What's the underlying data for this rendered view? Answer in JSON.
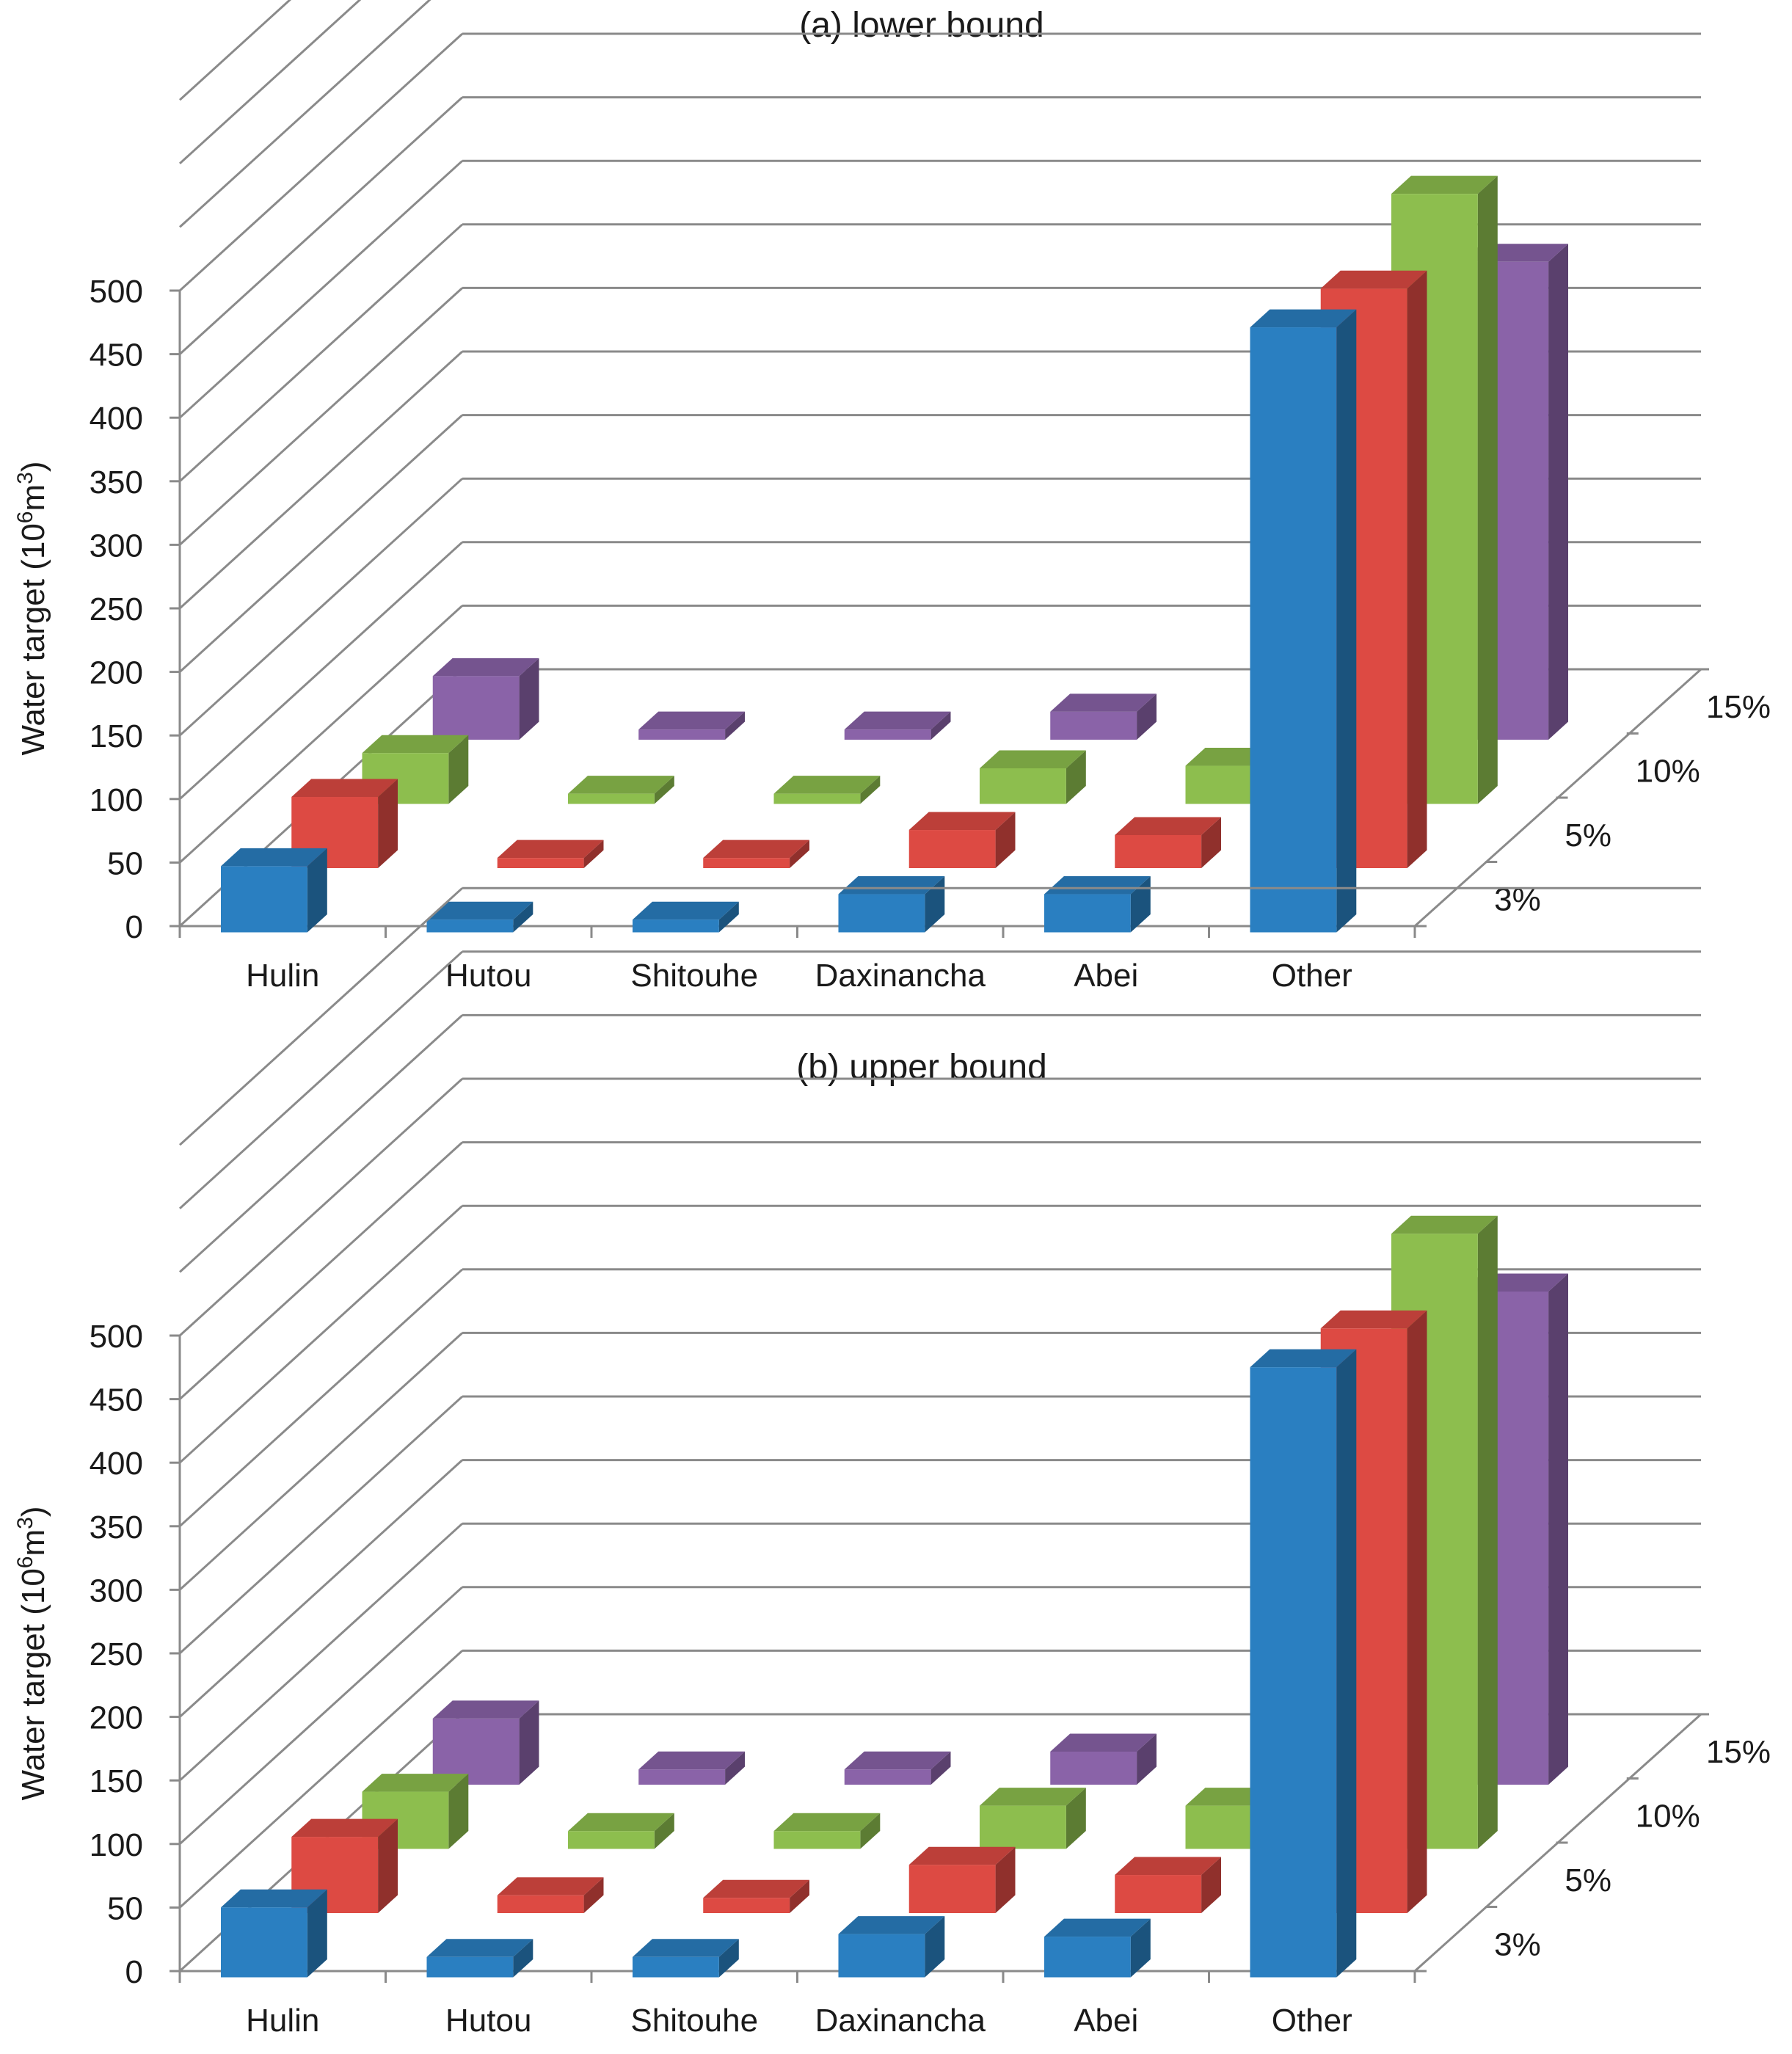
{
  "chart_data": [
    {
      "type": "bar",
      "subtype": "3d-column",
      "title": "(a) lower bound",
      "ylabel": "Water  target (10^6m^3)",
      "ylabel_parts": [
        "Water  target (10",
        "6",
        "m",
        "3",
        ")"
      ],
      "xlabel": "",
      "ylim": [
        0,
        500
      ],
      "yticks": [
        "0",
        "50",
        "100",
        "150",
        "200",
        "250",
        "300",
        "350",
        "400",
        "450",
        "500"
      ],
      "categories": [
        "Hulin",
        "Hutou",
        "Shitouhe",
        "Daxinancha",
        "Abei",
        "Other"
      ],
      "series": [
        {
          "name": "3%",
          "color": "#2a7fc1",
          "values": [
            52,
            10,
            10,
            30,
            30,
            476
          ]
        },
        {
          "name": "5%",
          "color": "#dd4a43",
          "values": [
            56,
            8,
            8,
            30,
            26,
            456
          ]
        },
        {
          "name": "10%",
          "color": "#8dbe4e",
          "values": [
            40,
            8,
            8,
            28,
            30,
            480
          ]
        },
        {
          "name": "15%",
          "color": "#8a63a8",
          "values": [
            50,
            8,
            8,
            22,
            0,
            376
          ]
        }
      ]
    },
    {
      "type": "bar",
      "subtype": "3d-column",
      "title": "(b) upper bound",
      "ylabel": "Water  target (10^6m^3)",
      "ylabel_parts": [
        "Water  target (10",
        "6",
        "m",
        "3",
        ")"
      ],
      "xlabel": "",
      "ylim": [
        0,
        500
      ],
      "yticks": [
        "0",
        "50",
        "100",
        "150",
        "200",
        "250",
        "300",
        "350",
        "400",
        "450",
        "500"
      ],
      "categories": [
        "Hulin",
        "Hutou",
        "Shitouhe",
        "Daxinancha",
        "Abei",
        "Other"
      ],
      "series": [
        {
          "name": "3%",
          "color": "#2a7fc1",
          "values": [
            55,
            16,
            16,
            34,
            32,
            480
          ]
        },
        {
          "name": "5%",
          "color": "#dd4a43",
          "values": [
            60,
            14,
            12,
            38,
            30,
            460
          ]
        },
        {
          "name": "10%",
          "color": "#8dbe4e",
          "values": [
            45,
            14,
            14,
            34,
            34,
            484
          ]
        },
        {
          "name": "15%",
          "color": "#8a63a8",
          "values": [
            52,
            12,
            12,
            26,
            0,
            388
          ]
        }
      ]
    }
  ]
}
